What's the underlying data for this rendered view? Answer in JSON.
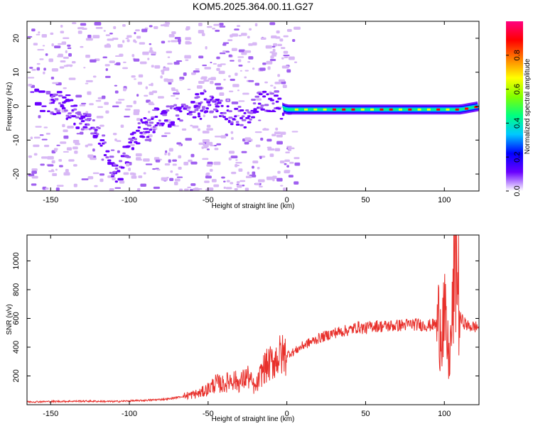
{
  "title": "KOM5.2025.364.00.11.G27",
  "chart_data": [
    {
      "type": "heatmap",
      "name": "spectrogram",
      "xlabel": "Height of straight line (km)",
      "ylabel": "Frequency (Hz)",
      "xlim": [
        -165,
        122
      ],
      "ylim": [
        -25,
        25
      ],
      "x_ticks": [
        -150,
        -100,
        -50,
        0,
        50,
        100
      ],
      "y_ticks": [
        -20,
        -10,
        0,
        10,
        20
      ],
      "colorbar": {
        "label": "Normalized spectral amplitude",
        "range": [
          0,
          1
        ],
        "ticks": [
          0.0,
          0.2,
          0.4,
          0.6,
          0.8
        ],
        "tick_labels": [
          "0.0",
          "0.2",
          "0.4",
          "0.6",
          "0.8"
        ],
        "colormap": [
          "#ffffff",
          "#d8b8f5",
          "#a060f0",
          "#6a00ff",
          "#0000ff",
          "#00c8ff",
          "#00ff80",
          "#80ff00",
          "#ffff00",
          "#ff8000",
          "#ff0000",
          "#ff0080"
        ]
      },
      "ridge": {
        "x": [
          -165,
          -140,
          -120,
          -110,
          -100,
          -90,
          -80,
          -70,
          -60,
          -50,
          -40,
          -30,
          -25,
          -20,
          -15,
          -10,
          -5,
          0,
          10,
          25,
          50,
          75,
          100,
          110,
          122
        ],
        "frequency": [
          2,
          0,
          -8,
          -20,
          -10,
          -5,
          -3,
          -2,
          0,
          1,
          -2,
          -3,
          -3,
          2,
          2,
          1,
          0,
          -1,
          -1,
          -1,
          -1,
          -1,
          -1,
          -1,
          0
        ]
      }
    },
    {
      "type": "line",
      "name": "snr",
      "xlabel": "Height of straight line (km)",
      "ylabel": "SNR (v/v)",
      "xlim": [
        -165,
        122
      ],
      "ylim": [
        0,
        1180
      ],
      "x_ticks": [
        -150,
        -100,
        -50,
        0,
        50,
        100
      ],
      "y_ticks": [
        200,
        400,
        600,
        800,
        1000
      ],
      "line_color": "#e8302b",
      "series": [
        {
          "name": "SNR",
          "x": [
            -165,
            -150,
            -130,
            -110,
            -90,
            -75,
            -65,
            -55,
            -50,
            -45,
            -40,
            -35,
            -30,
            -25,
            -20,
            -15,
            -10,
            -5,
            0,
            5,
            10,
            20,
            30,
            40,
            45,
            50,
            55,
            60,
            70,
            80,
            90,
            95,
            100,
            103,
            105,
            107,
            110,
            115,
            122
          ],
          "y": [
            20,
            22,
            25,
            22,
            30,
            40,
            60,
            80,
            110,
            150,
            140,
            180,
            150,
            200,
            110,
            250,
            290,
            340,
            350,
            370,
            410,
            460,
            500,
            520,
            540,
            530,
            550,
            545,
            550,
            560,
            550,
            560,
            600,
            300,
            560,
            1150,
            600,
            545,
            540
          ]
        }
      ]
    }
  ]
}
